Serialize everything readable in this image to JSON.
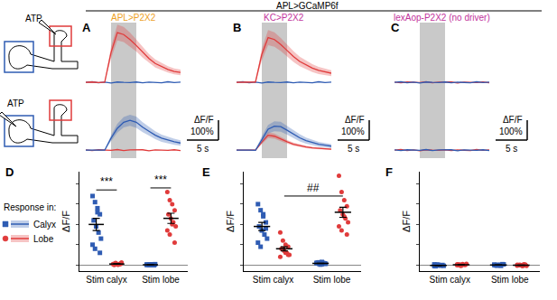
{
  "header": "APL>GCaMP6f",
  "schematic": {
    "labels": [
      "ATP",
      "ATP"
    ]
  },
  "legend_title": "Response in:",
  "chart_data": [
    {
      "panel": "A",
      "type": "line",
      "title": "APL>P2X2",
      "x": [
        -4,
        -3,
        -2,
        -1,
        0,
        1,
        2,
        3,
        4,
        5,
        6,
        7,
        8,
        9,
        10,
        11
      ],
      "xlim": [
        -4,
        11
      ],
      "ylim": [
        -40,
        300
      ],
      "tick_labels": false,
      "stimulus": [
        0,
        4
      ],
      "scale_bar": {
        "x": 5,
        "x_text": "5 s",
        "y": 100,
        "y_text": [
          "ΔF/F",
          "100%"
        ]
      },
      "rows": [
        {
          "series": [
            {
              "name": "Calyx",
              "color": "#2f5cb3",
              "values": [
                0,
                3,
                -2,
                1,
                -3,
                2,
                0,
                -1,
                2,
                -2,
                1,
                0,
                -2,
                3,
                -1,
                1
              ]
            },
            {
              "name": "Lobe",
              "color": "#e03b3b",
              "values": [
                0,
                2,
                -1,
                1,
                150,
                250,
                240,
                215,
                185,
                150,
                120,
                95,
                80,
                65,
                55,
                50
              ],
              "sem": [
                3,
                3,
                3,
                3,
                30,
                40,
                38,
                35,
                30,
                26,
                22,
                20,
                18,
                16,
                15,
                14
              ]
            }
          ]
        },
        {
          "series": [
            {
              "name": "Lobe",
              "color": "#e03b3b",
              "values": [
                1,
                -2,
                2,
                0,
                -1,
                3,
                -2,
                1,
                0,
                2,
                -3,
                1,
                0,
                -1,
                2,
                -2
              ]
            },
            {
              "name": "Calyx",
              "color": "#2f5cb3",
              "values": [
                0,
                1,
                -1,
                0,
                60,
                110,
                140,
                150,
                140,
                115,
                95,
                75,
                60,
                50,
                42,
                36
              ],
              "sem": [
                3,
                3,
                3,
                3,
                15,
                22,
                26,
                28,
                28,
                25,
                22,
                20,
                18,
                16,
                15,
                14
              ]
            }
          ]
        }
      ]
    },
    {
      "panel": "B",
      "type": "line",
      "title": "KC>P2X2",
      "x": [
        -4,
        -3,
        -2,
        -1,
        0,
        1,
        2,
        3,
        4,
        5,
        6,
        7,
        8,
        9,
        10,
        11
      ],
      "xlim": [
        -4,
        11
      ],
      "ylim": [
        -40,
        300
      ],
      "tick_labels": false,
      "stimulus": [
        0,
        4
      ],
      "scale_bar": {
        "x": 5,
        "x_text": "5 s",
        "y": 100,
        "y_text": [
          "ΔF/F",
          "100%"
        ]
      },
      "rows": [
        {
          "series": [
            {
              "name": "Calyx",
              "color": "#2f5cb3",
              "values": [
                0,
                3,
                -2,
                1,
                -3,
                2,
                0,
                -1,
                2,
                -2,
                1,
                0,
                -2,
                3,
                -1,
                1
              ]
            },
            {
              "name": "Lobe",
              "color": "#e03b3b",
              "values": [
                0,
                1,
                -1,
                2,
                140,
                225,
                215,
                190,
                160,
                130,
                105,
                88,
                72,
                60,
                52,
                46
              ],
              "sem": [
                4,
                4,
                4,
                4,
                30,
                38,
                36,
                33,
                30,
                27,
                24,
                22,
                20,
                18,
                16,
                15
              ]
            }
          ]
        },
        {
          "series": [
            {
              "name": "Lobe",
              "color": "#e03b3b",
              "values": [
                0,
                -1,
                1,
                0,
                40,
                75,
                70,
                55,
                42,
                30,
                22,
                16,
                12,
                9,
                7,
                5
              ],
              "sem": [
                3,
                3,
                3,
                3,
                10,
                14,
                13,
                11,
                9,
                8,
                7,
                6,
                5,
                5,
                4,
                4
              ]
            },
            {
              "name": "Calyx",
              "color": "#2f5cb3",
              "values": [
                0,
                1,
                0,
                -1,
                55,
                105,
                120,
                118,
                100,
                80,
                62,
                48,
                38,
                30,
                25,
                20
              ],
              "sem": [
                3,
                3,
                3,
                3,
                15,
                22,
                25,
                25,
                22,
                20,
                18,
                15,
                13,
                12,
                11,
                10
              ]
            }
          ]
        }
      ]
    },
    {
      "panel": "C",
      "type": "line",
      "title": "lexAop-P2X2 (no driver)",
      "x": [
        -4,
        -3,
        -2,
        -1,
        0,
        1,
        2,
        3,
        4,
        5,
        6,
        7,
        8,
        9,
        10,
        11
      ],
      "xlim": [
        -4,
        11
      ],
      "ylim": [
        -40,
        300
      ],
      "tick_labels": false,
      "stimulus": [
        0,
        4
      ],
      "scale_bar": {
        "x": 5,
        "x_text": "5 s",
        "y": 100,
        "y_text": [
          "ΔF/F",
          "100%"
        ]
      },
      "rows": [
        {
          "series": [
            {
              "name": "Lobe",
              "color": "#e03b3b",
              "values": [
                1,
                -2,
                2,
                0,
                -1,
                3,
                -2,
                1,
                0,
                2,
                -3,
                1,
                0,
                -1,
                2,
                -2
              ]
            },
            {
              "name": "Calyx",
              "color": "#2f5cb3",
              "values": [
                0,
                3,
                -2,
                1,
                -3,
                2,
                0,
                -1,
                2,
                -2,
                1,
                0,
                -2,
                3,
                -1,
                1
              ]
            }
          ]
        },
        {
          "series": [
            {
              "name": "Lobe",
              "color": "#e03b3b",
              "values": [
                0,
                3,
                -2,
                1,
                -3,
                2,
                0,
                -1,
                2,
                -2,
                1,
                0,
                -2,
                3,
                -1,
                1
              ]
            },
            {
              "name": "Calyx",
              "color": "#2f5cb3",
              "values": [
                1,
                -2,
                2,
                0,
                -1,
                3,
                -2,
                1,
                0,
                2,
                -3,
                1,
                0,
                -1,
                2,
                -2
              ]
            }
          ]
        }
      ]
    },
    {
      "panel": "D",
      "type": "scatter",
      "categories": [
        "Stim calyx",
        "Stim lobe"
      ],
      "y_label": "ΔF/F",
      "ylim": [
        -0.3,
        4.6
      ],
      "yticks": [
        0,
        1,
        2,
        3,
        4
      ],
      "tick_labels": "x",
      "grid": false,
      "series": [
        {
          "name": "Calyx",
          "color": "#2f5cb3",
          "marker": "square",
          "values": [
            [
              3.4,
              3.1,
              2.8,
              2.5,
              2.2,
              1.9,
              1.6,
              1.3,
              1.0,
              0.8,
              2.6,
              0.6
            ],
            [
              0.02,
              0.0,
              0.03,
              -0.01,
              0.01,
              0.02,
              0.0,
              0.04,
              0.01,
              0.02,
              0.0,
              0.01
            ]
          ],
          "mean": [
            2.0,
            0.01
          ],
          "sem": [
            0.3,
            0.005
          ]
        },
        {
          "name": "Lobe",
          "color": "#e03b3b",
          "marker": "circle",
          "values": [
            [
              0.05,
              0.1,
              0.02,
              0.08,
              0.0,
              0.06,
              0.03,
              0.12,
              0.04,
              0.07,
              0.01,
              0.05
            ],
            [
              3.6,
              3.2,
              3.0,
              2.7,
              2.5,
              2.3,
              2.1,
              1.9,
              1.7,
              1.5,
              2.0,
              1.1
            ]
          ],
          "mean": [
            0.05,
            2.3
          ],
          "sem": [
            0.01,
            0.25
          ]
        }
      ],
      "annotations": [
        {
          "text": "***",
          "y": 3.7,
          "from": {
            "category": "Stim calyx",
            "series": "Calyx"
          },
          "to": {
            "category": "Stim calyx",
            "series": "Lobe"
          }
        },
        {
          "text": "***",
          "y": 3.8,
          "from": {
            "category": "Stim lobe",
            "series": "Calyx"
          },
          "to": {
            "category": "Stim lobe",
            "series": "Lobe"
          }
        }
      ]
    },
    {
      "panel": "E",
      "type": "scatter",
      "categories": [
        "Stim calyx",
        "Stim lobe"
      ],
      "y_label": "ΔF/F",
      "ylim": [
        -0.3,
        4.6
      ],
      "yticks": [
        0,
        1,
        2,
        3,
        4
      ],
      "tick_labels": "x",
      "grid": false,
      "series": [
        {
          "name": "Calyx",
          "color": "#2f5cb3",
          "marker": "square",
          "values": [
            [
              3.0,
              2.7,
              2.4,
              2.1,
              1.9,
              1.7,
              1.5,
              1.3,
              1.1,
              0.9,
              2.5,
              1.8
            ],
            [
              0.1,
              0.05,
              0.15,
              0.08,
              0.12,
              0.02,
              0.1,
              0.06,
              0.09,
              0.13,
              0.04,
              0.07
            ]
          ],
          "mean": [
            1.9,
            0.08
          ],
          "sem": [
            0.2,
            0.01
          ]
        },
        {
          "name": "Lobe",
          "color": "#e03b3b",
          "marker": "circle",
          "values": [
            [
              1.6,
              1.2,
              1.0,
              0.9,
              0.8,
              0.7,
              0.6,
              0.5,
              0.4,
              0.8,
              0.6,
              0.5
            ],
            [
              4.4,
              3.6,
              3.2,
              2.9,
              2.7,
              2.5,
              2.3,
              2.1,
              1.9,
              1.7,
              2.4,
              1.5
            ]
          ],
          "mean": [
            0.8,
            2.6
          ],
          "sem": [
            0.1,
            0.25
          ]
        }
      ],
      "annotations": [
        {
          "text": "##",
          "y": 3.4,
          "from": {
            "category": "Stim calyx",
            "series": "Lobe"
          },
          "to": {
            "category": "Stim lobe",
            "series": "Lobe"
          }
        }
      ]
    },
    {
      "panel": "F",
      "type": "scatter",
      "categories": [
        "Stim calyx",
        "Stim lobe"
      ],
      "y_label": "ΔF/F",
      "ylim": [
        -0.3,
        4.6
      ],
      "yticks": [
        0,
        1,
        2,
        3,
        4
      ],
      "tick_labels": "x",
      "grid": false,
      "series": [
        {
          "name": "Calyx",
          "color": "#2f5cb3",
          "marker": "square",
          "values": [
            [
              -0.05,
              0.02,
              -0.03,
              0.0,
              -0.06,
              0.01,
              -0.02,
              -0.04,
              0.03,
              -0.01
            ],
            [
              0.02,
              -0.03,
              0.0,
              0.04,
              -0.02,
              0.01,
              -0.04,
              0.03,
              0.0,
              -0.01
            ]
          ],
          "mean": [
            -0.02,
            0.0
          ],
          "sem": [
            0.01,
            0.01
          ]
        },
        {
          "name": "Lobe",
          "color": "#e03b3b",
          "marker": "circle",
          "values": [
            [
              0.03,
              -0.02,
              0.05,
              0.0,
              0.02,
              -0.04,
              0.01,
              0.06,
              -0.01,
              0.02
            ],
            [
              -0.03,
              0.01,
              -0.05,
              0.02,
              0.0,
              -0.02,
              0.03,
              -0.04,
              0.01,
              -0.01
            ]
          ],
          "mean": [
            0.01,
            -0.01
          ],
          "sem": [
            0.01,
            0.01
          ]
        }
      ],
      "annotations": []
    }
  ]
}
